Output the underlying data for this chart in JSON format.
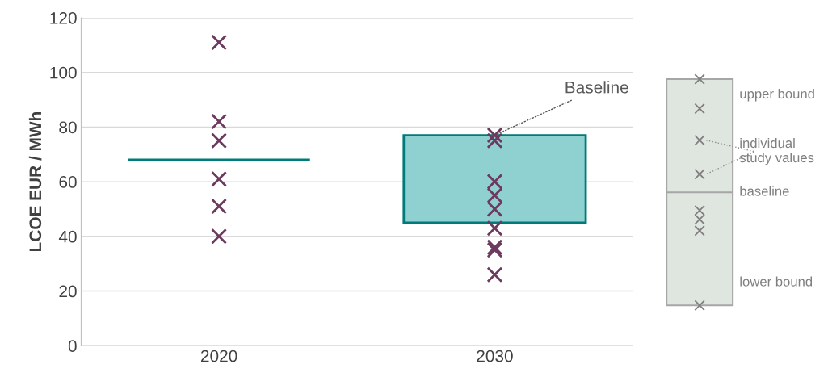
{
  "chart_data": {
    "type": "bar",
    "ylabel": "LCOE EUR / MWh",
    "categories": [
      "2020",
      "2030"
    ],
    "series": [
      {
        "colors": [
          "#007a7a",
          "#8fd0d0"
        ],
        "values": [
          0,
          32
        ],
        "base": [
          68,
          45
        ]
      },
      {
        "type": "scatter",
        "color": "#6b3a5e",
        "marker": "cross",
        "values": [
          111,
          77
        ]
      },
      {
        "type": "scatter",
        "color": "#6b3a5e",
        "marker": "cross",
        "values": [
          82,
          75
        ]
      },
      {
        "type": "scatter",
        "color": "#6b3a5e",
        "marker": "cross",
        "values": [
          75,
          60
        ]
      },
      {
        "type": "scatter",
        "color": "#6b3a5e",
        "marker": "cross",
        "values": [
          61,
          55
        ]
      },
      {
        "type": "scatter",
        "color": "#6b3a5e",
        "marker": "cross",
        "values": [
          51,
          50
        ]
      },
      {
        "type": "scatter",
        "color": "#6b3a5e",
        "marker": "cross",
        "values": [
          40,
          43
        ]
      },
      {
        "type": "scatter",
        "color": "#6b3a5e",
        "marker": "cross",
        "values": [
          null,
          36
        ]
      },
      {
        "type": "scatter",
        "color": "#6b3a5e",
        "marker": "cross",
        "values": [
          null,
          35
        ]
      },
      {
        "type": "scatter",
        "color": "#6b3a5e",
        "marker": "cross",
        "values": [
          null,
          26
        ]
      }
    ],
    "ylim": [
      0,
      120
    ],
    "yticks": [
      0,
      20,
      40,
      60,
      80,
      100,
      120
    ],
    "grid": "y",
    "annotations": [
      {
        "text": "Baseline",
        "x": "2030",
        "y": 77
      },
      "upper bound",
      "individual study values",
      "baseline",
      "lower bound"
    ]
  }
}
